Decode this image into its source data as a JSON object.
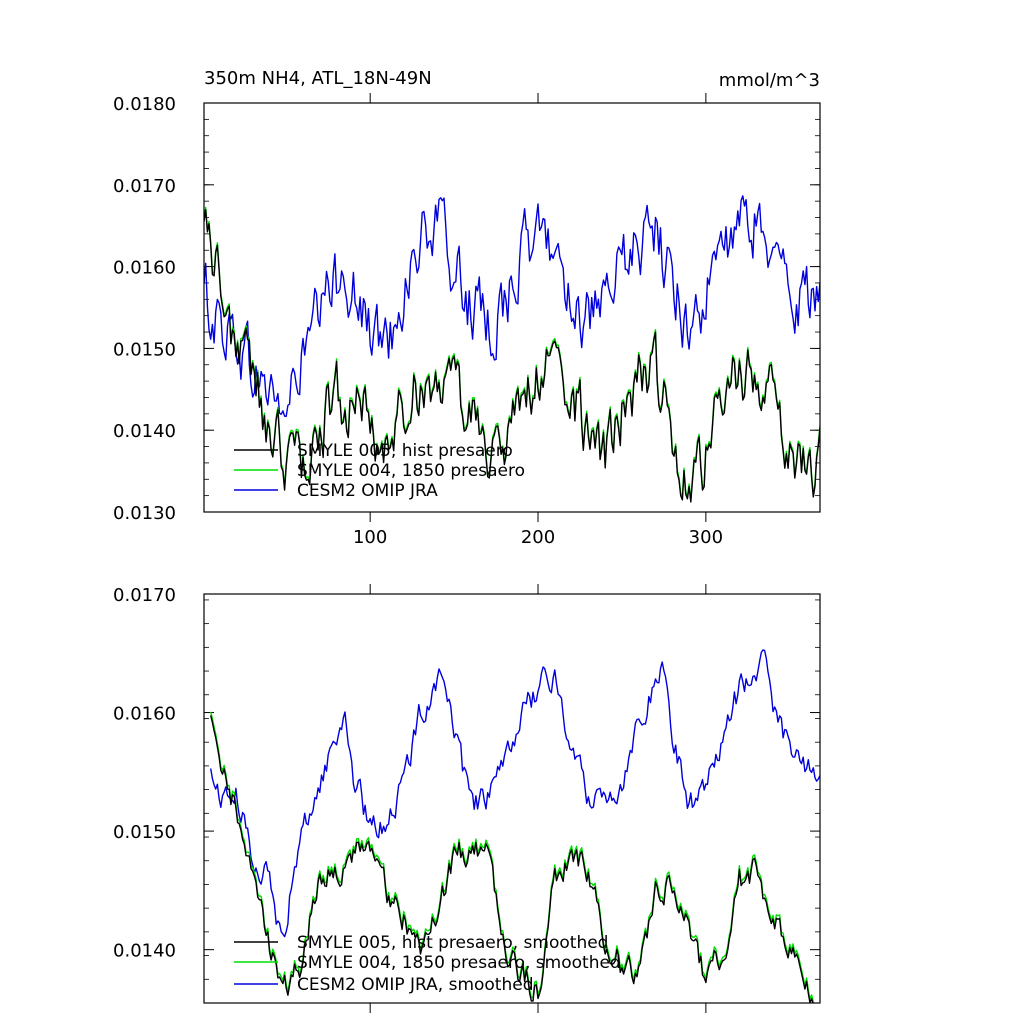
{
  "chart_data": [
    {
      "type": "line",
      "title": "350m NH4, ATL_18N-49N",
      "units": "mmol/m^3",
      "xlim": [
        1,
        368
      ],
      "ylim": [
        0.013,
        0.018
      ],
      "xticks": [
        100,
        200,
        300
      ],
      "xtick_labels": [
        "100",
        "200",
        "300"
      ],
      "yticks": [
        0.013,
        0.014,
        0.015,
        0.016,
        0.017,
        0.018
      ],
      "ytick_labels": [
        "0.0130",
        "0.0140",
        "0.0150",
        "0.0160",
        "0.0170",
        "0.0180"
      ],
      "legend_position": "bottom-left",
      "series": [
        {
          "name": "SMYLE 005, hist presaero",
          "color": "#000000",
          "anchors": [
            [
              1,
              0.0169
            ],
            [
              10,
              0.0158
            ],
            [
              20,
              0.0151
            ],
            [
              30,
              0.0147
            ],
            [
              40,
              0.0139
            ],
            [
              50,
              0.0137
            ],
            [
              60,
              0.0136
            ],
            [
              70,
              0.014
            ],
            [
              80,
              0.0145
            ],
            [
              90,
              0.0143
            ],
            [
              100,
              0.0141
            ],
            [
              110,
              0.0138
            ],
            [
              120,
              0.0143
            ],
            [
              130,
              0.0146
            ],
            [
              140,
              0.0147
            ],
            [
              150,
              0.0144
            ],
            [
              160,
              0.0142
            ],
            [
              170,
              0.0139
            ],
            [
              180,
              0.0137
            ],
            [
              190,
              0.0143
            ],
            [
              200,
              0.0147
            ],
            [
              210,
              0.0148
            ],
            [
              220,
              0.0145
            ],
            [
              230,
              0.0139
            ],
            [
              240,
              0.0136
            ],
            [
              250,
              0.0142
            ],
            [
              260,
              0.0146
            ],
            [
              270,
              0.0147
            ],
            [
              280,
              0.014
            ],
            [
              290,
              0.0135
            ],
            [
              300,
              0.0137
            ],
            [
              310,
              0.0144
            ],
            [
              320,
              0.0147
            ],
            [
              330,
              0.0148
            ],
            [
              340,
              0.0143
            ],
            [
              350,
              0.0139
            ],
            [
              360,
              0.0135
            ],
            [
              368,
              0.0136
            ]
          ],
          "noise": 0.00065
        },
        {
          "name": "SMYLE 004, 1850 presaero",
          "color": "#00dd00",
          "anchors": [
            [
              1,
              0.0169
            ],
            [
              10,
              0.0158
            ],
            [
              20,
              0.0151
            ],
            [
              30,
              0.0147
            ],
            [
              40,
              0.0139
            ],
            [
              50,
              0.0137
            ],
            [
              60,
              0.0136
            ],
            [
              70,
              0.014
            ],
            [
              80,
              0.0145
            ],
            [
              90,
              0.0143
            ],
            [
              100,
              0.0141
            ],
            [
              110,
              0.0138
            ],
            [
              120,
              0.0143
            ],
            [
              130,
              0.0146
            ],
            [
              140,
              0.0147
            ],
            [
              150,
              0.0144
            ],
            [
              160,
              0.0142
            ],
            [
              170,
              0.0139
            ],
            [
              180,
              0.0137
            ],
            [
              190,
              0.0143
            ],
            [
              200,
              0.0147
            ],
            [
              210,
              0.0148
            ],
            [
              220,
              0.0145
            ],
            [
              230,
              0.0139
            ],
            [
              240,
              0.0136
            ],
            [
              250,
              0.0142
            ],
            [
              260,
              0.0146
            ],
            [
              270,
              0.0147
            ],
            [
              280,
              0.014
            ],
            [
              290,
              0.0135
            ],
            [
              300,
              0.0137
            ],
            [
              310,
              0.0144
            ],
            [
              320,
              0.0147
            ],
            [
              330,
              0.0148
            ],
            [
              340,
              0.0143
            ],
            [
              350,
              0.0139
            ],
            [
              360,
              0.0135
            ],
            [
              368,
              0.0136
            ]
          ],
          "noise": 0.00065
        },
        {
          "name": "CESM2 OMIP JRA",
          "color": "#0000dd",
          "anchors": [
            [
              1,
              0.0157
            ],
            [
              10,
              0.0153
            ],
            [
              20,
              0.0152
            ],
            [
              30,
              0.0147
            ],
            [
              40,
              0.0145
            ],
            [
              50,
              0.0142
            ],
            [
              60,
              0.0149
            ],
            [
              70,
              0.0154
            ],
            [
              80,
              0.0158
            ],
            [
              85,
              0.0161
            ],
            [
              90,
              0.0157
            ],
            [
              100,
              0.0152
            ],
            [
              110,
              0.015
            ],
            [
              120,
              0.0158
            ],
            [
              130,
              0.0163
            ],
            [
              140,
              0.0165
            ],
            [
              150,
              0.016
            ],
            [
              160,
              0.0155
            ],
            [
              170,
              0.0152
            ],
            [
              180,
              0.0156
            ],
            [
              190,
              0.0161
            ],
            [
              200,
              0.0164
            ],
            [
              210,
              0.0162
            ],
            [
              220,
              0.0157
            ],
            [
              230,
              0.0153
            ],
            [
              240,
              0.0154
            ],
            [
              250,
              0.016
            ],
            [
              260,
              0.0163
            ],
            [
              270,
              0.0164
            ],
            [
              280,
              0.0158
            ],
            [
              290,
              0.0153
            ],
            [
              300,
              0.0156
            ],
            [
              310,
              0.0162
            ],
            [
              320,
              0.0164
            ],
            [
              330,
              0.0166
            ],
            [
              340,
              0.0161
            ],
            [
              350,
              0.0157
            ],
            [
              360,
              0.0156
            ],
            [
              368,
              0.0155
            ]
          ],
          "noise": 0.0007
        }
      ]
    },
    {
      "type": "line",
      "title": "",
      "xlim": [
        1,
        368
      ],
      "ylim": [
        0.01355,
        0.017
      ],
      "xticks": [
        100,
        200,
        300
      ],
      "xtick_labels": [
        "",
        "",
        ""
      ],
      "yticks": [
        0.014,
        0.015,
        0.016,
        0.017
      ],
      "ytick_labels": [
        "0.0140",
        "0.0150",
        "0.0160",
        "0.0170"
      ],
      "legend_position": "bottom-left",
      "series": [
        {
          "name": "SMYLE 005, hist presaero, smoothed",
          "color": "#000000",
          "anchors": [
            [
              5,
              0.0161
            ],
            [
              10,
              0.0156
            ],
            [
              20,
              0.0152
            ],
            [
              30,
              0.0148
            ],
            [
              40,
              0.0141
            ],
            [
              45,
              0.0139
            ],
            [
              50,
              0.0137
            ],
            [
              60,
              0.0139
            ],
            [
              65,
              0.0143
            ],
            [
              70,
              0.0146
            ],
            [
              80,
              0.0147
            ],
            [
              90,
              0.0148
            ],
            [
              100,
              0.0149
            ],
            [
              110,
              0.0145
            ],
            [
              120,
              0.0143
            ],
            [
              130,
              0.0141
            ],
            [
              140,
              0.0143
            ],
            [
              150,
              0.0148
            ],
            [
              160,
              0.0149
            ],
            [
              170,
              0.0148
            ],
            [
              180,
              0.0141
            ],
            [
              190,
              0.0138
            ],
            [
              200,
              0.0137
            ],
            [
              210,
              0.0146
            ],
            [
              220,
              0.0148
            ],
            [
              230,
              0.0147
            ],
            [
              240,
              0.0141
            ],
            [
              250,
              0.0139
            ],
            [
              260,
              0.0138
            ],
            [
              270,
              0.0145
            ],
            [
              280,
              0.0146
            ],
            [
              290,
              0.0142
            ],
            [
              300,
              0.01375
            ],
            [
              310,
              0.014
            ],
            [
              320,
              0.0146
            ],
            [
              330,
              0.0147
            ],
            [
              340,
              0.0143
            ],
            [
              350,
              0.014
            ],
            [
              360,
              0.01375
            ],
            [
              368,
              0.01355
            ]
          ],
          "noise": 0.0002
        },
        {
          "name": "SMYLE 004, 1850 presaero, smoothed",
          "color": "#00dd00",
          "anchors": [
            [
              5,
              0.0161
            ],
            [
              10,
              0.0156
            ],
            [
              20,
              0.0152
            ],
            [
              30,
              0.0148
            ],
            [
              40,
              0.0141
            ],
            [
              45,
              0.0139
            ],
            [
              50,
              0.0137
            ],
            [
              60,
              0.0139
            ],
            [
              65,
              0.0143
            ],
            [
              70,
              0.0146
            ],
            [
              80,
              0.0147
            ],
            [
              90,
              0.0148
            ],
            [
              100,
              0.0149
            ],
            [
              110,
              0.0145
            ],
            [
              120,
              0.0143
            ],
            [
              130,
              0.0141
            ],
            [
              140,
              0.0143
            ],
            [
              150,
              0.0148
            ],
            [
              160,
              0.0149
            ],
            [
              170,
              0.0148
            ],
            [
              180,
              0.0141
            ],
            [
              190,
              0.0138
            ],
            [
              200,
              0.0137
            ],
            [
              210,
              0.0146
            ],
            [
              220,
              0.0148
            ],
            [
              230,
              0.0147
            ],
            [
              240,
              0.0141
            ],
            [
              250,
              0.0139
            ],
            [
              260,
              0.0138
            ],
            [
              270,
              0.0145
            ],
            [
              280,
              0.0146
            ],
            [
              290,
              0.0142
            ],
            [
              300,
              0.01375
            ],
            [
              310,
              0.014
            ],
            [
              320,
              0.0146
            ],
            [
              330,
              0.0147
            ],
            [
              340,
              0.0143
            ],
            [
              350,
              0.014
            ],
            [
              360,
              0.01375
            ],
            [
              368,
              0.01355
            ]
          ],
          "noise": 0.0002
        },
        {
          "name": "CESM2 OMIP JRA, smoothed",
          "color": "#0000dd",
          "anchors": [
            [
              5,
              0.0155
            ],
            [
              10,
              0.0153
            ],
            [
              20,
              0.0153
            ],
            [
              30,
              0.0148
            ],
            [
              40,
              0.0146
            ],
            [
              45,
              0.0142
            ],
            [
              50,
              0.0143
            ],
            [
              60,
              0.015
            ],
            [
              70,
              0.0154
            ],
            [
              75,
              0.0156
            ],
            [
              80,
              0.0158
            ],
            [
              85,
              0.016
            ],
            [
              90,
              0.0155
            ],
            [
              100,
              0.015
            ],
            [
              110,
              0.0151
            ],
            [
              120,
              0.0154
            ],
            [
              130,
              0.016
            ],
            [
              140,
              0.0163
            ],
            [
              145,
              0.0163
            ],
            [
              150,
              0.0158
            ],
            [
              160,
              0.0152
            ],
            [
              170,
              0.0153
            ],
            [
              180,
              0.0155
            ],
            [
              190,
              0.016
            ],
            [
              200,
              0.0162
            ],
            [
              210,
              0.0163
            ],
            [
              220,
              0.0157
            ],
            [
              230,
              0.0153
            ],
            [
              240,
              0.0153
            ],
            [
              250,
              0.0154
            ],
            [
              260,
              0.016
            ],
            [
              270,
              0.0162
            ],
            [
              275,
              0.0164
            ],
            [
              280,
              0.0158
            ],
            [
              290,
              0.0152
            ],
            [
              300,
              0.0154
            ],
            [
              310,
              0.0158
            ],
            [
              320,
              0.0162
            ],
            [
              330,
              0.0163
            ],
            [
              335,
              0.0166
            ],
            [
              340,
              0.016
            ],
            [
              350,
              0.0157
            ],
            [
              360,
              0.0155
            ],
            [
              368,
              0.0155
            ]
          ],
          "noise": 0.0002
        }
      ]
    }
  ]
}
